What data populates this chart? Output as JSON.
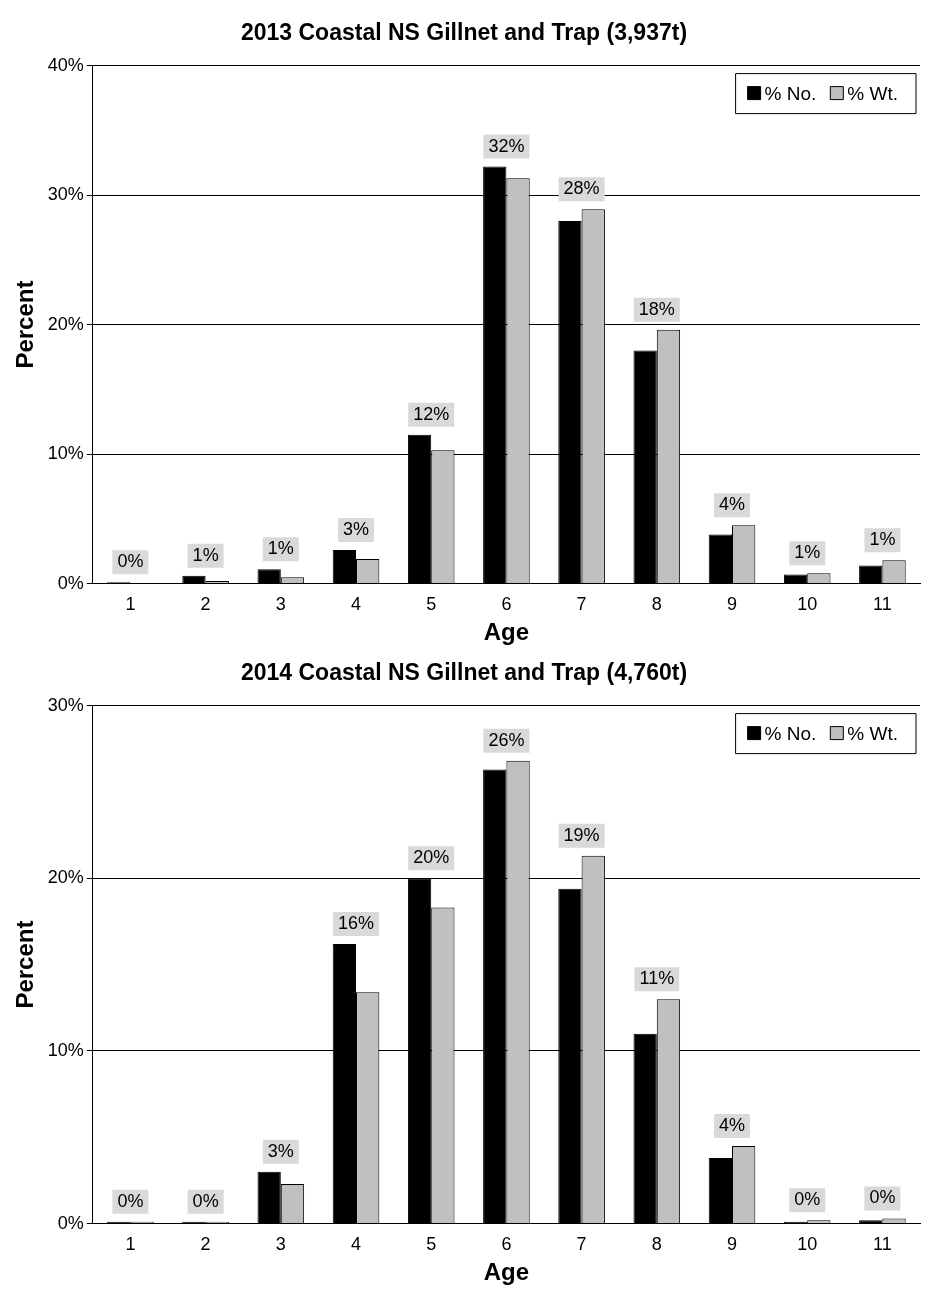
{
  "chart_data": [
    {
      "type": "bar",
      "title": "2013 Coastal NS Gillnet and Trap (3,937t)",
      "xlabel": "Age",
      "ylabel": "Percent",
      "categories": [
        "1",
        "2",
        "3",
        "4",
        "5",
        "6",
        "7",
        "8",
        "9",
        "10",
        "11"
      ],
      "series": [
        {
          "name": "% No.",
          "color": "#000000",
          "values": [
            0.1,
            0.6,
            1.1,
            2.6,
            11.5,
            32.2,
            28.0,
            18.0,
            3.8,
            0.7,
            1.4
          ],
          "value_labels": [
            "0%",
            "1%",
            "1%",
            "3%",
            "12%",
            "32%",
            "28%",
            "18%",
            "4%",
            "1%",
            "1%"
          ]
        },
        {
          "name": "% Wt.",
          "color": "#c0c0c0",
          "values": [
            0,
            0.2,
            0.5,
            1.9,
            10.3,
            31.3,
            28.9,
            19.6,
            4.5,
            0.8,
            1.8
          ]
        }
      ],
      "ylim": [
        0,
        40
      ],
      "yticks": [
        {
          "value": 0,
          "label": "0%"
        },
        {
          "value": 10,
          "label": "10%"
        },
        {
          "value": 20,
          "label": "20%"
        },
        {
          "value": 30,
          "label": "30%"
        },
        {
          "value": 40,
          "label": "40%"
        }
      ],
      "grid": "y",
      "legend": "top right"
    },
    {
      "type": "bar",
      "title": "2014 Coastal NS Gillnet and Trap (4,760t)",
      "xlabel": "Age",
      "ylabel": "Percent",
      "categories": [
        "1",
        "2",
        "3",
        "4",
        "5",
        "6",
        "7",
        "8",
        "9",
        "10",
        "11"
      ],
      "series": [
        {
          "name": "% No.",
          "color": "#000000",
          "values": [
            0.1,
            0.1,
            3.0,
            16.2,
            20.0,
            26.3,
            19.4,
            11.0,
            3.8,
            0.1,
            0.2
          ],
          "value_labels": [
            "0%",
            "0%",
            "3%",
            "16%",
            "20%",
            "26%",
            "19%",
            "11%",
            "4%",
            "0%",
            "0%"
          ]
        },
        {
          "name": "% Wt.",
          "color": "#c0c0c0",
          "values": [
            0.1,
            0.1,
            2.3,
            13.4,
            18.3,
            26.8,
            21.3,
            13.0,
            4.5,
            0.2,
            0.3
          ]
        }
      ],
      "ylim": [
        0,
        30
      ],
      "yticks": [
        {
          "value": 0,
          "label": "0%"
        },
        {
          "value": 10,
          "label": "10%"
        },
        {
          "value": 20,
          "label": "20%"
        },
        {
          "value": 30,
          "label": "30%"
        }
      ],
      "grid": "y",
      "legend": "top right"
    }
  ]
}
